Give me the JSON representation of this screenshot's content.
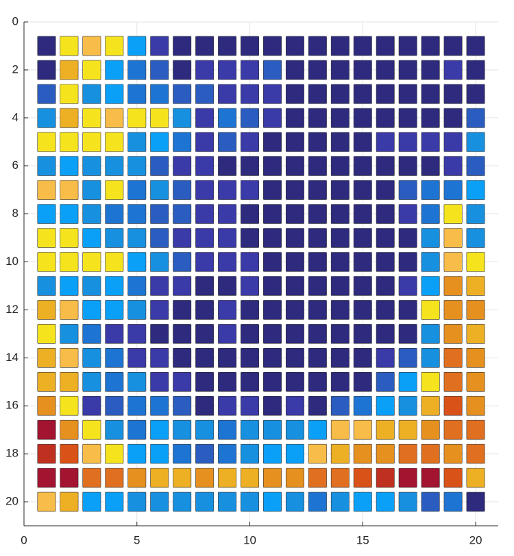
{
  "chart_data": {
    "type": "heatmap",
    "x": [
      1,
      2,
      3,
      4,
      5,
      6,
      7,
      8,
      9,
      10,
      11,
      12,
      13,
      14,
      15,
      16,
      17,
      18,
      19,
      20
    ],
    "y": [
      1,
      2,
      3,
      4,
      5,
      6,
      7,
      8,
      9,
      10,
      11,
      12,
      13,
      14,
      15,
      16,
      17,
      18,
      19,
      20
    ],
    "xlim": [
      0,
      21
    ],
    "ylim": [
      0,
      21
    ],
    "y_reversed": true,
    "xticks": [
      0,
      5,
      10,
      15,
      20
    ],
    "yticks": [
      0,
      2,
      4,
      6,
      8,
      10,
      12,
      14,
      16,
      18,
      20
    ],
    "grid": true,
    "colormap": [
      "#2e2a7e",
      "#3a3aa8",
      "#2b5dc0",
      "#1e74d2",
      "#1890e0",
      "#0aa0f8",
      "#f5e31e",
      "#f8bc48",
      "#edb024",
      "#e69020",
      "#e07020",
      "#d95319",
      "#c03020",
      "#a2142f"
    ],
    "values": [
      [
        0,
        6,
        7,
        6,
        5,
        1,
        0,
        0,
        0,
        0,
        0,
        0,
        0,
        0,
        0,
        0,
        0,
        0,
        0,
        0
      ],
      [
        0,
        8,
        6,
        5,
        3,
        2,
        0,
        1,
        1,
        1,
        2,
        0,
        0,
        0,
        0,
        0,
        0,
        0,
        1,
        0
      ],
      [
        2,
        6,
        4,
        5,
        3,
        3,
        2,
        2,
        1,
        1,
        1,
        0,
        0,
        0,
        0,
        0,
        0,
        0,
        0,
        0
      ],
      [
        4,
        8,
        6,
        7,
        6,
        6,
        4,
        1,
        3,
        2,
        1,
        0,
        0,
        0,
        0,
        0,
        0,
        0,
        0,
        2
      ],
      [
        6,
        6,
        6,
        6,
        4,
        5,
        3,
        1,
        2,
        1,
        0,
        0,
        0,
        0,
        0,
        1,
        1,
        1,
        1,
        4
      ],
      [
        4,
        5,
        4,
        4,
        4,
        2,
        1,
        1,
        0,
        0,
        0,
        0,
        0,
        0,
        0,
        0,
        0,
        0,
        1,
        2
      ],
      [
        7,
        7,
        4,
        6,
        3,
        4,
        2,
        1,
        1,
        1,
        0,
        0,
        0,
        0,
        0,
        0,
        2,
        3,
        3,
        5
      ],
      [
        5,
        5,
        4,
        3,
        3,
        2,
        2,
        1,
        1,
        0,
        0,
        0,
        0,
        0,
        0,
        0,
        1,
        3,
        6,
        4
      ],
      [
        6,
        6,
        5,
        4,
        4,
        2,
        1,
        1,
        1,
        0,
        0,
        0,
        0,
        0,
        0,
        0,
        0,
        4,
        7,
        4
      ],
      [
        6,
        6,
        6,
        6,
        5,
        4,
        2,
        1,
        1,
        1,
        0,
        0,
        0,
        0,
        0,
        0,
        0,
        4,
        7,
        6
      ],
      [
        4,
        5,
        4,
        5,
        3,
        1,
        1,
        0,
        0,
        1,
        0,
        0,
        0,
        0,
        0,
        0,
        1,
        5,
        9,
        8
      ],
      [
        8,
        7,
        5,
        5,
        4,
        1,
        0,
        0,
        1,
        0,
        0,
        0,
        0,
        0,
        0,
        0,
        0,
        6,
        9,
        9
      ],
      [
        6,
        4,
        3,
        1,
        1,
        0,
        0,
        0,
        1,
        0,
        0,
        0,
        0,
        0,
        0,
        0,
        0,
        4,
        9,
        8
      ],
      [
        8,
        7,
        4,
        3,
        1,
        1,
        0,
        0,
        0,
        0,
        0,
        0,
        0,
        0,
        0,
        1,
        2,
        4,
        10,
        9
      ],
      [
        8,
        8,
        4,
        3,
        4,
        1,
        1,
        0,
        0,
        0,
        0,
        0,
        0,
        0,
        0,
        2,
        5,
        6,
        10,
        9
      ],
      [
        9,
        6,
        1,
        2,
        3,
        3,
        2,
        0,
        1,
        1,
        0,
        1,
        0,
        2,
        3,
        5,
        4,
        8,
        11,
        9
      ],
      [
        13,
        9,
        6,
        4,
        3,
        5,
        4,
        4,
        3,
        4,
        4,
        4,
        5,
        7,
        7,
        8,
        8,
        9,
        10,
        10
      ],
      [
        12,
        11,
        7,
        6,
        5,
        5,
        3,
        2,
        3,
        4,
        5,
        5,
        7,
        8,
        9,
        9,
        10,
        10,
        9,
        10
      ],
      [
        13,
        13,
        10,
        10,
        9,
        8,
        8,
        9,
        8,
        8,
        9,
        9,
        10,
        10,
        11,
        12,
        13,
        13,
        11,
        8
      ],
      [
        7,
        8,
        5,
        5,
        4,
        4,
        4,
        4,
        4,
        4,
        5,
        4,
        3,
        4,
        5,
        5,
        4,
        2,
        3,
        0
      ]
    ]
  }
}
